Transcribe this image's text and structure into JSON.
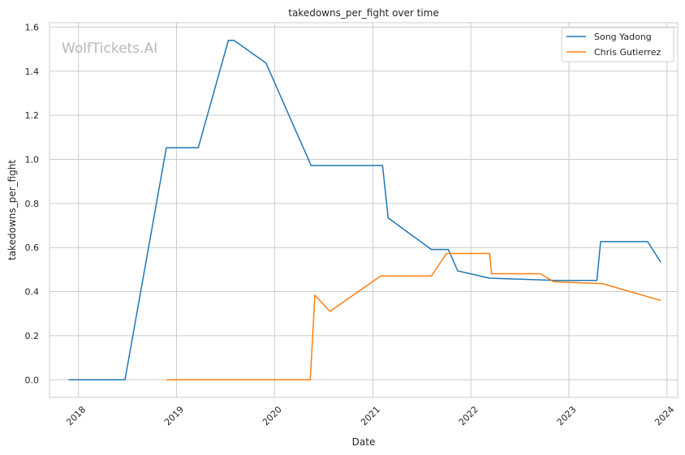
{
  "chart_data": {
    "type": "line",
    "title": "takedowns_per_fight over time",
    "xlabel": "Date",
    "ylabel": "takedowns_per_fight",
    "watermark": "WolfTickets.AI",
    "xlim": [
      "2017-09-15",
      "2024-02-10"
    ],
    "ylim": [
      -0.08,
      1.62
    ],
    "x_ticks": [
      "2018-01-01",
      "2019-01-01",
      "2020-01-01",
      "2021-01-01",
      "2022-01-01",
      "2023-01-01",
      "2024-01-01"
    ],
    "x_tick_labels": [
      "2018",
      "2019",
      "2020",
      "2021",
      "2022",
      "2023",
      "2024"
    ],
    "y_ticks": [
      0.0,
      0.2,
      0.4,
      0.6,
      0.8,
      1.0,
      1.2,
      1.4,
      1.6
    ],
    "y_tick_labels": [
      "0.0",
      "0.2",
      "0.4",
      "0.6",
      "0.8",
      "1.0",
      "1.2",
      "1.4",
      "1.6"
    ],
    "grid": true,
    "legend_position": "top-right",
    "series": [
      {
        "name": "Song Yadong",
        "color": "#1f77b4",
        "points": [
          [
            "2017-11-25",
            0.0
          ],
          [
            "2018-06-23",
            0.0
          ],
          [
            "2018-11-24",
            1.053
          ],
          [
            "2019-03-23",
            1.053
          ],
          [
            "2019-07-13",
            1.54
          ],
          [
            "2019-08-03",
            1.54
          ],
          [
            "2019-11-30",
            1.437
          ],
          [
            "2020-05-16",
            0.972
          ],
          [
            "2021-02-06",
            0.972
          ],
          [
            "2021-02-27",
            0.734
          ],
          [
            "2021-08-07",
            0.591
          ],
          [
            "2021-10-09",
            0.591
          ],
          [
            "2021-11-13",
            0.494
          ],
          [
            "2022-03-12",
            0.461
          ],
          [
            "2022-11-12",
            0.451
          ],
          [
            "2023-04-15",
            0.451
          ],
          [
            "2023-04-29",
            0.627
          ],
          [
            "2023-10-21",
            0.627
          ],
          [
            "2023-12-09",
            0.533
          ]
        ]
      },
      {
        "name": "Chris Gutierrez",
        "color": "#ff7f0e",
        "points": [
          [
            "2018-11-24",
            0.0
          ],
          [
            "2020-05-13",
            0.0
          ],
          [
            "2020-05-30",
            0.384
          ],
          [
            "2020-07-25",
            0.31
          ],
          [
            "2021-01-30",
            0.471
          ],
          [
            "2021-08-07",
            0.471
          ],
          [
            "2021-10-02",
            0.573
          ],
          [
            "2022-03-12",
            0.573
          ],
          [
            "2022-03-19",
            0.481
          ],
          [
            "2022-09-17",
            0.481
          ],
          [
            "2022-11-05",
            0.445
          ],
          [
            "2023-05-06",
            0.436
          ],
          [
            "2023-12-09",
            0.36
          ]
        ]
      }
    ]
  }
}
